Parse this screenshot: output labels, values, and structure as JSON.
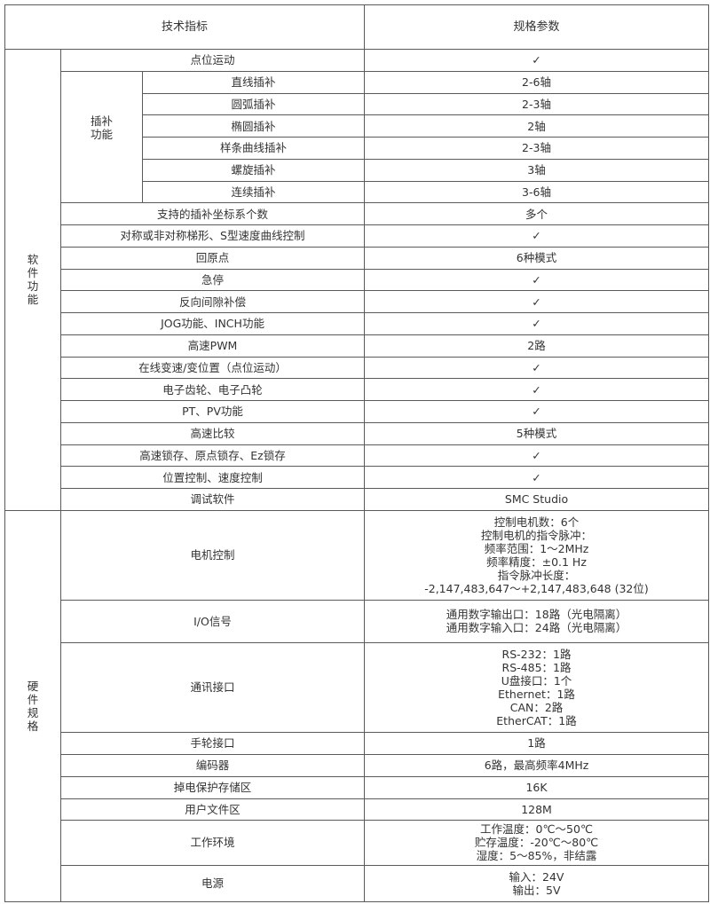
{
  "header": {
    "indicator": "技术指标",
    "spec": "规格参数"
  },
  "software": {
    "group": "软件功能",
    "interp_group": "插补功能",
    "rows_before": [
      {
        "name": "点位运动",
        "value": "✓"
      }
    ],
    "interp_rows": [
      {
        "name": "直线插补",
        "value": "2-6轴"
      },
      {
        "name": "圆弧插补",
        "value": "2-3轴"
      },
      {
        "name": "椭圆插补",
        "value": "2轴"
      },
      {
        "name": "样条曲线插补",
        "value": "2-3轴"
      },
      {
        "name": "螺旋插补",
        "value": "3轴"
      },
      {
        "name": "连续插补",
        "value": "3-6轴"
      }
    ],
    "rows_after": [
      {
        "name": "支持的插补坐标系个数",
        "value": "多个"
      },
      {
        "name": "对称或非对称梯形、S型速度曲线控制",
        "value": "✓"
      },
      {
        "name": "回原点",
        "value": "6种模式"
      },
      {
        "name": "急停",
        "value": "✓"
      },
      {
        "name": "反向间隙补偿",
        "value": "✓"
      },
      {
        "name": "JOG功能、INCH功能",
        "value": "✓"
      },
      {
        "name": "高速PWM",
        "value": "2路"
      },
      {
        "name": "在线变速/变位置（点位运动）",
        "value": "✓"
      },
      {
        "name": "电子齿轮、电子凸轮",
        "value": "✓"
      },
      {
        "name": "PT、PV功能",
        "value": "✓"
      },
      {
        "name": "高速比较",
        "value": "5种模式"
      },
      {
        "name": "高速锁存、原点锁存、Ez锁存",
        "value": "✓"
      },
      {
        "name": "位置控制、速度控制",
        "value": "✓"
      },
      {
        "name": "调试软件",
        "value": "SMC Studio"
      }
    ]
  },
  "hardware": {
    "group": "硬件规格",
    "rows": [
      {
        "name": "电机控制",
        "values": [
          "控制电机数：6个",
          "控制电机的指令脉冲：",
          "频率范围：1～2MHz",
          "频率精度：±0.1 Hz",
          "指令脉冲长度：",
          "-2,147,483,647～+2,147,483,648 (32位)"
        ]
      },
      {
        "name": "I/O信号",
        "values": [
          "通用数字输出口：18路（光电隔离）",
          "通用数字输入口：24路（光电隔离）"
        ]
      },
      {
        "name": "通讯接口",
        "values": [
          "RS-232：1路",
          "RS-485：1路",
          "U盘接口：1个",
          "Ethernet：1路",
          "CAN：2路",
          "EtherCAT：1路"
        ]
      },
      {
        "name": "手轮接口",
        "values": [
          "1路"
        ]
      },
      {
        "name": "编码器",
        "values": [
          "6路，最高频率4MHz"
        ]
      },
      {
        "name": "掉电保护存储区",
        "values": [
          "16K"
        ]
      },
      {
        "name": "用户文件区",
        "values": [
          "128M"
        ]
      },
      {
        "name": "工作环境",
        "values": [
          "工作温度：0℃～50℃",
          "贮存温度：-20℃～80℃",
          "湿度：5～85%，非结露"
        ]
      },
      {
        "name": "电源",
        "values": [
          "输入：24V",
          "输出：5V"
        ]
      }
    ]
  }
}
